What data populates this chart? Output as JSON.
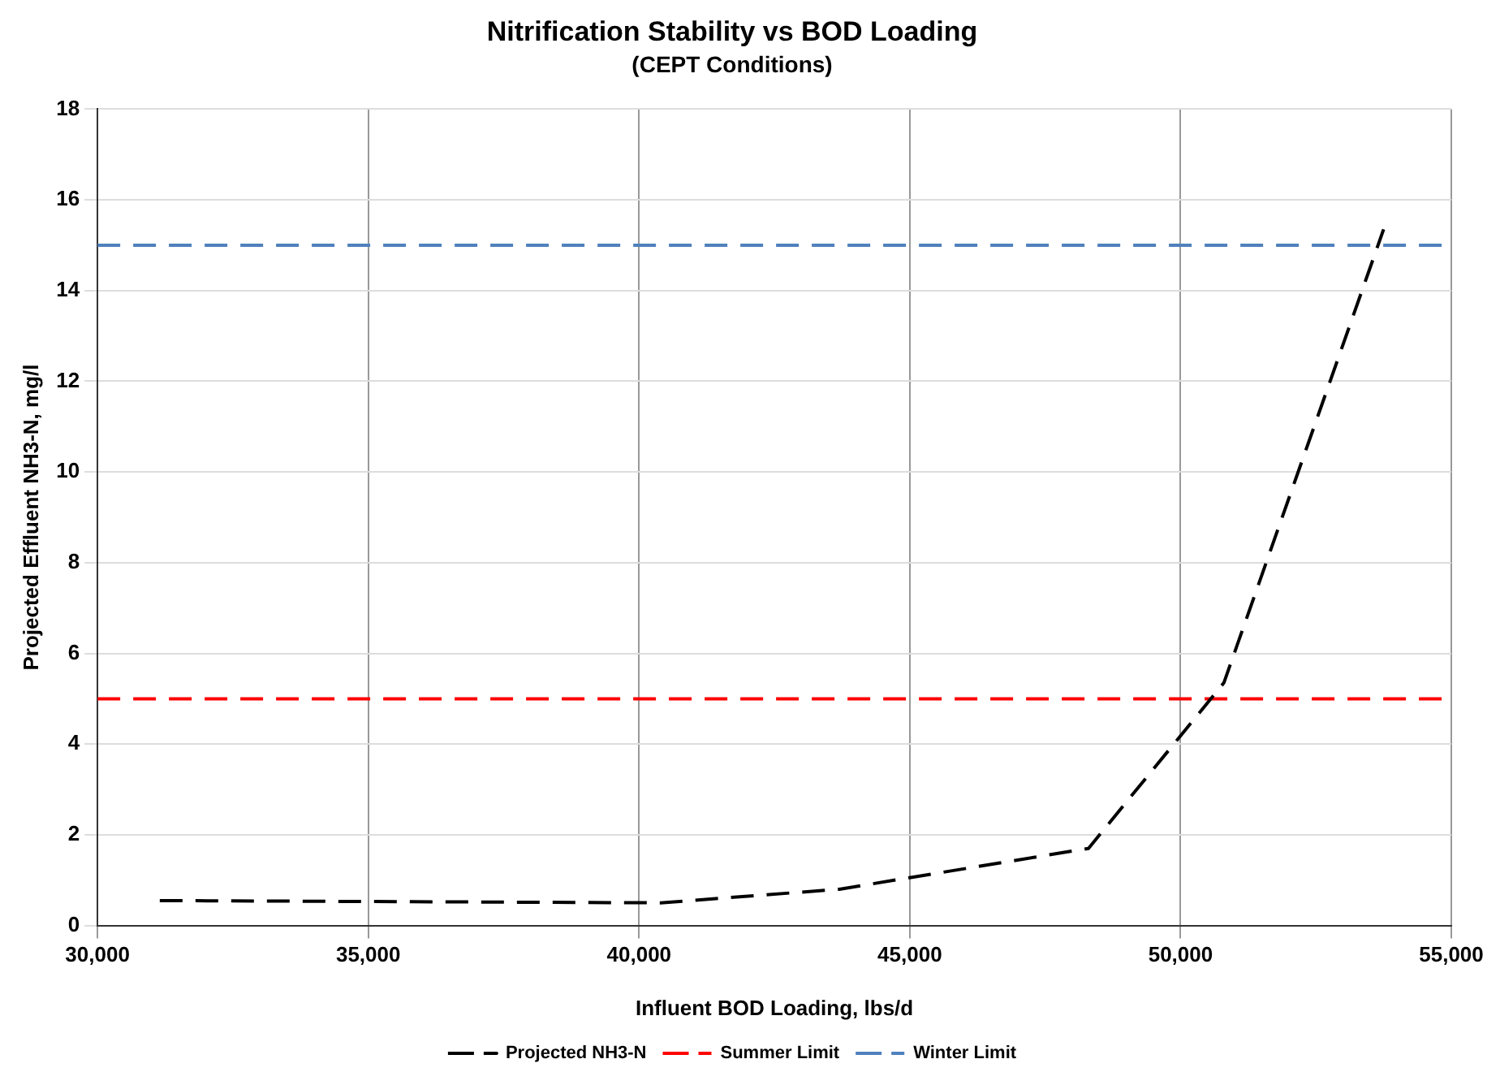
{
  "chart_data": {
    "type": "line",
    "title": "Nitrification Stability vs BOD Loading",
    "subtitle": "(CEPT Conditions)",
    "xlabel": "Influent BOD Loading, lbs/d",
    "ylabel": "Projected Effluent NH3-N, mg/l",
    "x": [
      31150,
      40400,
      43700,
      48300,
      50800,
      53750
    ],
    "series": [
      {
        "name": "Projected NH3-N",
        "color": "#000000",
        "values": [
          0.55,
          0.5,
          0.8,
          1.7,
          5.35,
          15.35
        ]
      }
    ],
    "ref_lines": [
      {
        "axis": "y",
        "value": 5,
        "label": "Summer Limit",
        "color": "#ff0000",
        "line_style": "dashed"
      },
      {
        "axis": "y",
        "value": 15,
        "label": "Winter Limit",
        "color": "#4f81bd",
        "line_style": "dashed"
      }
    ],
    "xlim": [
      30000,
      55000
    ],
    "xticks": [
      {
        "value": 30000,
        "label": "30,000"
      },
      {
        "value": 35000,
        "label": "35,000"
      },
      {
        "value": 40000,
        "label": "40,000"
      },
      {
        "value": 45000,
        "label": "45,000"
      },
      {
        "value": 50000,
        "label": "50,000"
      },
      {
        "value": 55000,
        "label": "55,000"
      }
    ],
    "ylim": [
      0,
      18
    ],
    "yticks": [
      0,
      2,
      4,
      6,
      8,
      10,
      12,
      14,
      16,
      18
    ],
    "grid": true,
    "legend": "bottom",
    "marker": "none",
    "line_style": "dashed"
  }
}
